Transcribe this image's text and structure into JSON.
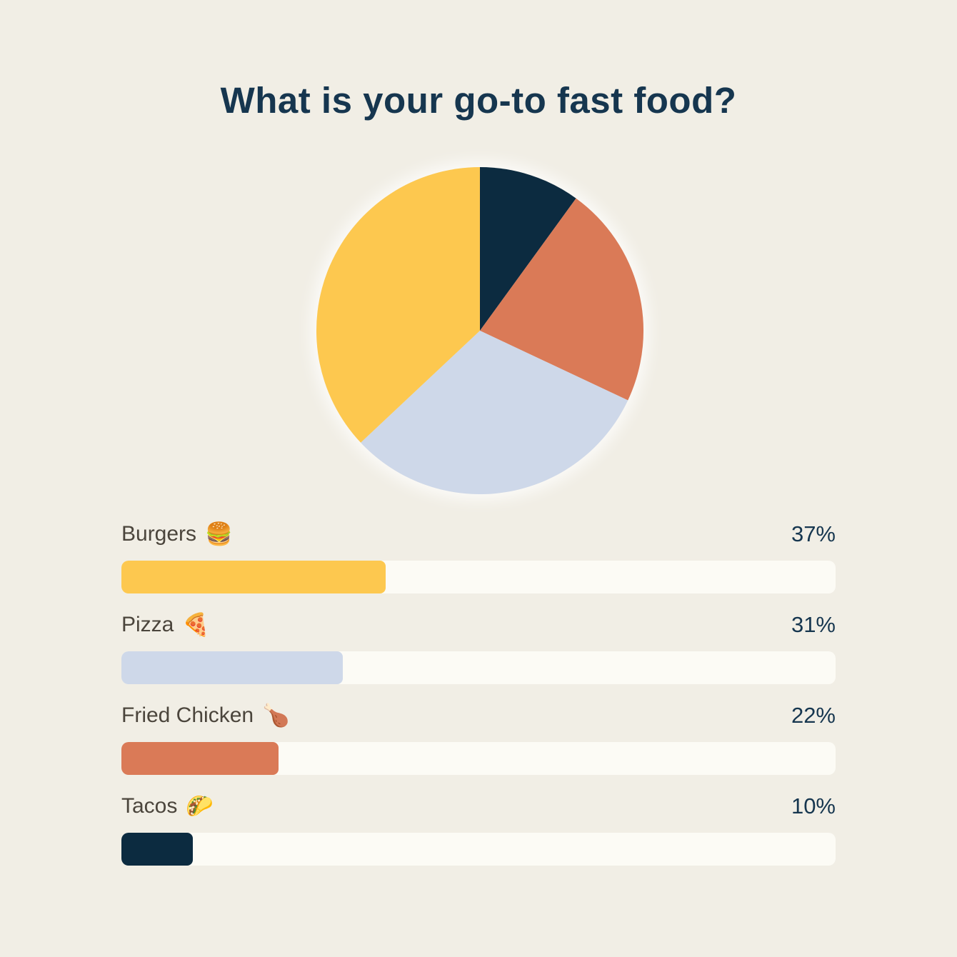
{
  "page": {
    "background": "#F1EEE5"
  },
  "title": "What is your go-to fast food?",
  "title_color": "#16364F",
  "chart_data": {
    "type": "pie",
    "title": "What is your go-to fast food?",
    "categories": [
      "Burgers",
      "Pizza",
      "Fried Chicken",
      "Tacos"
    ],
    "values": [
      37,
      31,
      22,
      10
    ],
    "unit": "percent",
    "colors": [
      "#FDC84F",
      "#CED8E9",
      "#DA7A57",
      "#0C2B40"
    ],
    "clockwise_from_top_order": [
      "Tacos",
      "Fried Chicken",
      "Pizza",
      "Burgers"
    ],
    "legend_position": "none",
    "companion_bars": {
      "type": "bar",
      "orientation": "horizontal",
      "max": 100,
      "values": [
        37,
        31,
        22,
        10
      ]
    }
  },
  "poll": {
    "label_color": "#4B453C",
    "percent_color": "#16364F",
    "track_color": "#FCFBF5",
    "options": [
      {
        "label": "Burgers",
        "emoji": "🍔",
        "percent": 37,
        "percent_display": "37%",
        "color": "#FDC84F"
      },
      {
        "label": "Pizza",
        "emoji": "🍕",
        "percent": 31,
        "percent_display": "31%",
        "color": "#CED8E9"
      },
      {
        "label": "Fried Chicken",
        "emoji": "🍗",
        "percent": 22,
        "percent_display": "22%",
        "color": "#DA7A57"
      },
      {
        "label": "Tacos",
        "emoji": "🌮",
        "percent": 10,
        "percent_display": "10%",
        "color": "#0C2B40"
      }
    ]
  }
}
